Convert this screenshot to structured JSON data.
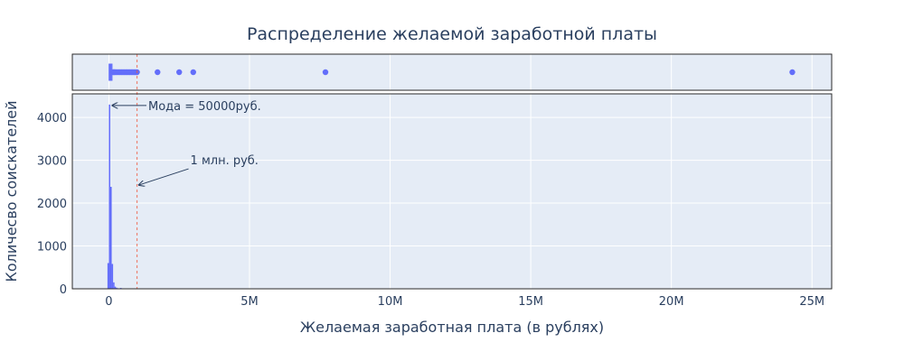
{
  "chart_data": {
    "type": "histogram",
    "title": "Распределение желаемой заработной платы",
    "xlabel": "Желаемая заработная плата (в рублях)",
    "ylabel": "Количесво соискателей",
    "xlim": [
      -1300000,
      25700000
    ],
    "ylim": [
      0,
      4550
    ],
    "x_ticks": [
      {
        "value": 0,
        "label": "0"
      },
      {
        "value": 5000000,
        "label": "5M"
      },
      {
        "value": 10000000,
        "label": "10M"
      },
      {
        "value": 15000000,
        "label": "15M"
      },
      {
        "value": 20000000,
        "label": "20M"
      },
      {
        "value": 25000000,
        "label": "25M"
      }
    ],
    "y_ticks": [
      {
        "value": 0,
        "label": "0"
      },
      {
        "value": 1000,
        "label": "1000"
      },
      {
        "value": 2000,
        "label": "2000"
      },
      {
        "value": 3000,
        "label": "3000"
      },
      {
        "value": 4000,
        "label": "4000"
      }
    ],
    "bins": [
      {
        "x0": -50000,
        "x1": 0,
        "y": 600
      },
      {
        "x0": 0,
        "x1": 50000,
        "y": 4300
      },
      {
        "x0": 50000,
        "x1": 100000,
        "y": 2380
      },
      {
        "x0": 100000,
        "x1": 150000,
        "y": 580
      },
      {
        "x0": 150000,
        "x1": 200000,
        "y": 150
      },
      {
        "x0": 200000,
        "x1": 250000,
        "y": 50
      },
      {
        "x0": 250000,
        "x1": 300000,
        "y": 25
      },
      {
        "x0": 300000,
        "x1": 350000,
        "y": 12
      },
      {
        "x0": 350000,
        "x1": 400000,
        "y": 8
      },
      {
        "x0": 400000,
        "x1": 450000,
        "y": 20
      },
      {
        "x0": 450000,
        "x1": 500000,
        "y": 6
      }
    ],
    "marginal_box": {
      "box_min": 20000,
      "q1": 40000,
      "median": 55000,
      "q3": 80000,
      "whisker_high": 140000,
      "outliers": [
        150000,
        180000,
        210000,
        250000,
        300000,
        350000,
        400000,
        450000,
        500000,
        550000,
        600000,
        650000,
        700000,
        750000,
        800000,
        850000,
        900000,
        950000,
        1000000,
        1730000,
        2500000,
        3000000,
        7700000,
        24300000
      ]
    },
    "reference_line": {
      "x": 1000000
    },
    "annotations": [
      {
        "text": "Мода = 50000руб.",
        "x": 50000,
        "y": 4300
      },
      {
        "text": "1 млн. руб.",
        "x": 1000000,
        "y": 2400
      }
    ],
    "colors": {
      "bar": "#636efa",
      "plot_bg": "#e5ecf6",
      "reference_line": "#ef553b",
      "text": "#2a3f5f"
    },
    "grid": true
  }
}
